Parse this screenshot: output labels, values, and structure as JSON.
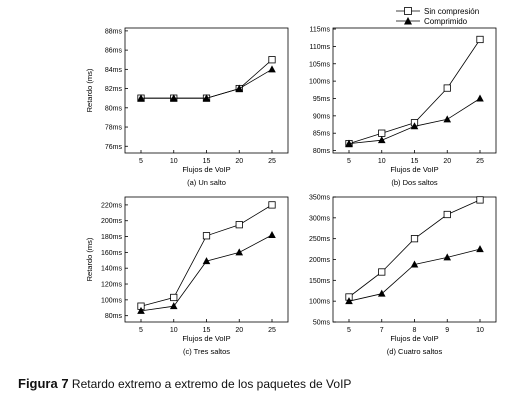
{
  "legend": {
    "series1": "Sin compresión",
    "series2": "Comprimido"
  },
  "caption": {
    "label": "Figura 7",
    "text": " Retardo extremo a extremo de los paquetes de VoIP"
  },
  "chart_data": [
    {
      "type": "line",
      "subtitle": "(a) Un salto",
      "xlabel": "Flujos de VoIP",
      "ylabel": "Retardo (ms)",
      "x": [
        5,
        10,
        15,
        20,
        25
      ],
      "yticks": [
        76,
        78,
        80,
        82,
        84,
        86,
        88
      ],
      "ytick_labels": [
        "76ms",
        "78ms",
        "80ms",
        "82ms",
        "84ms",
        "86ms",
        "88ms"
      ],
      "ylim": [
        75.3,
        88.3
      ],
      "series": [
        {
          "name": "Sin compresión",
          "marker": "square-open",
          "values": [
            81,
            81,
            81,
            82,
            85
          ]
        },
        {
          "name": "Comprimido",
          "marker": "triangle-filled",
          "values": [
            81,
            81,
            81,
            82,
            84
          ]
        }
      ]
    },
    {
      "type": "line",
      "subtitle": "(b) Dos saltos",
      "xlabel": "Flujos de VoIP",
      "ylabel": "",
      "x": [
        5,
        10,
        15,
        20,
        25
      ],
      "yticks": [
        80,
        85,
        90,
        95,
        100,
        105,
        110,
        115
      ],
      "ytick_labels": [
        "80ms",
        "85ms",
        "90ms",
        "95ms",
        "100ms",
        "105ms",
        "110ms",
        "115ms"
      ],
      "ylim": [
        79.3,
        115.3
      ],
      "series": [
        {
          "name": "Sin compresión",
          "marker": "square-open",
          "values": [
            82,
            85,
            88,
            98,
            112
          ]
        },
        {
          "name": "Comprimido",
          "marker": "triangle-filled",
          "values": [
            82,
            83,
            87,
            89,
            95
          ]
        }
      ]
    },
    {
      "type": "line",
      "subtitle": "(c) Tres saltos",
      "xlabel": "Flujos de VoIP",
      "ylabel": "Retardo (ms)",
      "x": [
        5,
        10,
        15,
        20,
        25
      ],
      "yticks": [
        80,
        100,
        120,
        140,
        160,
        180,
        200,
        220
      ],
      "ytick_labels": [
        "80ms",
        "100ms",
        "120ms",
        "140ms",
        "160ms",
        "180ms",
        "200ms",
        "220ms"
      ],
      "ylim": [
        72,
        230
      ],
      "series": [
        {
          "name": "Sin compresión",
          "marker": "square-open",
          "values": [
            92,
            103,
            181,
            195,
            220
          ]
        },
        {
          "name": "Comprimido",
          "marker": "triangle-filled",
          "values": [
            86,
            92,
            149,
            160,
            182
          ]
        }
      ]
    },
    {
      "type": "line",
      "subtitle": "(d) Cuatro saltos",
      "xlabel": "Flujos de VoIP",
      "ylabel": "",
      "x": [
        5,
        7,
        8,
        9,
        10
      ],
      "yticks": [
        50,
        100,
        150,
        200,
        250,
        300,
        350
      ],
      "ytick_labels": [
        "50ms",
        "100ms",
        "150ms",
        "200ms",
        "250ms",
        "300ms",
        "350ms"
      ],
      "ylim": [
        50,
        350
      ],
      "series": [
        {
          "name": "Sin compresión",
          "marker": "square-open",
          "values": [
            110,
            170,
            250,
            308,
            343
          ]
        },
        {
          "name": "Comprimido",
          "marker": "triangle-filled",
          "values": [
            100,
            118,
            188,
            205,
            225
          ]
        }
      ]
    }
  ]
}
